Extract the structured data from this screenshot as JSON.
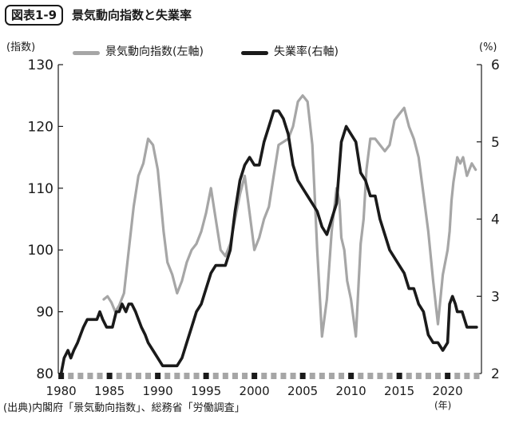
{
  "header": {
    "badge": "図表1-9",
    "title": "景気動向指数と失業率"
  },
  "source_note": "(出典)内閣府「景気動向指数」、総務省「労働調査」",
  "colors": {
    "ci_series": "#a6a6a6",
    "unemployment_series": "#1a1a1a",
    "axis": "#1a1a1a",
    "year_marker": "#1a1a1a",
    "year_tick": "#a6a6a6"
  },
  "chart_data": {
    "type": "line",
    "title": "景気動向指数と失業率",
    "left_axis": {
      "unit_label": "(指数)",
      "range": [
        80,
        130
      ],
      "ticks": [
        80,
        90,
        100,
        110,
        120,
        130
      ]
    },
    "right_axis": {
      "unit_label": "(%)",
      "range": [
        2,
        6
      ],
      "ticks": [
        2,
        3,
        4,
        5,
        6
      ]
    },
    "x_axis": {
      "unit_label": "(年)",
      "range": [
        1979.7,
        2023.5
      ],
      "tick_labels": [
        1980,
        1985,
        1990,
        1995,
        2000,
        2005,
        2010,
        2015,
        2020
      ]
    },
    "grid": false,
    "legend_position": "top",
    "series": [
      {
        "name": "景気動向指数(左軸)",
        "axis": "left",
        "x": [
          1984.4,
          1984.8,
          1985.2,
          1985.6,
          1986.0,
          1986.5,
          1987.0,
          1987.5,
          1988.0,
          1988.5,
          1989.0,
          1989.5,
          1990.0,
          1990.3,
          1990.6,
          1991.0,
          1991.5,
          1992.0,
          1992.5,
          1993.0,
          1993.5,
          1994.0,
          1994.5,
          1995.0,
          1995.5,
          1996.0,
          1996.5,
          1997.0,
          1997.5,
          1998.0,
          1998.5,
          1999.0,
          1999.5,
          2000.0,
          2000.5,
          2001.0,
          2001.5,
          2002.0,
          2002.5,
          2003.0,
          2003.5,
          2004.0,
          2004.5,
          2005.0,
          2005.5,
          2006.0,
          2006.5,
          2007.0,
          2007.5,
          2008.0,
          2008.5,
          2008.8,
          2009.0,
          2009.3,
          2009.6,
          2010.0,
          2010.5,
          2011.0,
          2011.3,
          2011.6,
          2012.0,
          2012.5,
          2013.0,
          2013.5,
          2014.0,
          2014.5,
          2015.0,
          2015.5,
          2016.0,
          2016.5,
          2017.0,
          2017.5,
          2018.0,
          2018.5,
          2019.0,
          2019.5,
          2020.0,
          2020.2,
          2020.4,
          2020.6,
          2021.0,
          2021.3,
          2021.6,
          2022.0,
          2022.5,
          2022.9
        ],
        "values": [
          92,
          92.5,
          91.5,
          90,
          91,
          93,
          100,
          107,
          112,
          114,
          118,
          117,
          113,
          108,
          103,
          98,
          96,
          93,
          95,
          98,
          100,
          101,
          103,
          106,
          110,
          105,
          100,
          99,
          101,
          105,
          109,
          112,
          106,
          100,
          102,
          105,
          107,
          112,
          117,
          117.5,
          118,
          120,
          124,
          125,
          124,
          117,
          100,
          86,
          92,
          103,
          110,
          108,
          102,
          100,
          95,
          92,
          86,
          101,
          105,
          113,
          118,
          118,
          117,
          116,
          117,
          121,
          122,
          123,
          120,
          118,
          115,
          109,
          103,
          95,
          88,
          96,
          100,
          103,
          108,
          111,
          115,
          114,
          115,
          112,
          114,
          113
        ],
        "note": "series values are estimates read off the plotted line; x positions follow the printed year axis"
      },
      {
        "name": "失業率(右軸)",
        "axis": "right",
        "x": [
          1980.0,
          1980.3,
          1980.7,
          1981.0,
          1981.3,
          1981.7,
          1982.0,
          1982.3,
          1982.7,
          1983.0,
          1983.3,
          1983.7,
          1984.0,
          1984.3,
          1984.7,
          1985.0,
          1985.3,
          1985.7,
          1986.0,
          1986.3,
          1986.7,
          1987.0,
          1987.3,
          1987.7,
          1988.0,
          1988.3,
          1988.7,
          1989.0,
          1989.5,
          1990.0,
          1990.5,
          1991.0,
          1991.5,
          1992.0,
          1992.5,
          1993.0,
          1993.5,
          1994.0,
          1994.5,
          1995.0,
          1995.5,
          1996.0,
          1996.5,
          1997.0,
          1997.5,
          1998.0,
          1998.5,
          1999.0,
          1999.5,
          2000.0,
          2000.5,
          2001.0,
          2001.5,
          2002.0,
          2002.5,
          2003.0,
          2003.5,
          2004.0,
          2004.5,
          2005.0,
          2005.5,
          2006.0,
          2006.5,
          2007.0,
          2007.5,
          2008.0,
          2008.5,
          2009.0,
          2009.5,
          2010.0,
          2010.5,
          2011.0,
          2011.5,
          2012.0,
          2012.5,
          2013.0,
          2013.5,
          2014.0,
          2014.5,
          2015.0,
          2015.5,
          2016.0,
          2016.5,
          2017.0,
          2017.5,
          2018.0,
          2018.5,
          2019.0,
          2019.5,
          2020.0,
          2020.2,
          2020.5,
          2020.8,
          2021.0,
          2021.5,
          2022.0,
          2022.5,
          2023.0
        ],
        "values": [
          2.0,
          2.2,
          2.3,
          2.2,
          2.3,
          2.4,
          2.5,
          2.6,
          2.7,
          2.7,
          2.7,
          2.7,
          2.8,
          2.7,
          2.6,
          2.6,
          2.6,
          2.8,
          2.8,
          2.9,
          2.8,
          2.9,
          2.9,
          2.8,
          2.7,
          2.6,
          2.5,
          2.4,
          2.3,
          2.2,
          2.1,
          2.1,
          2.1,
          2.1,
          2.2,
          2.4,
          2.6,
          2.8,
          2.9,
          3.1,
          3.3,
          3.4,
          3.4,
          3.4,
          3.6,
          4.1,
          4.5,
          4.7,
          4.8,
          4.7,
          4.7,
          5.0,
          5.2,
          5.4,
          5.4,
          5.3,
          5.1,
          4.7,
          4.5,
          4.4,
          4.3,
          4.2,
          4.1,
          3.9,
          3.8,
          4.0,
          4.2,
          5.0,
          5.2,
          5.1,
          5.0,
          4.6,
          4.5,
          4.3,
          4.3,
          4.0,
          3.8,
          3.6,
          3.5,
          3.4,
          3.3,
          3.1,
          3.1,
          2.9,
          2.8,
          2.5,
          2.4,
          2.4,
          2.3,
          2.4,
          2.9,
          3.0,
          2.9,
          2.8,
          2.8,
          2.6,
          2.6,
          2.6
        ]
      }
    ]
  }
}
